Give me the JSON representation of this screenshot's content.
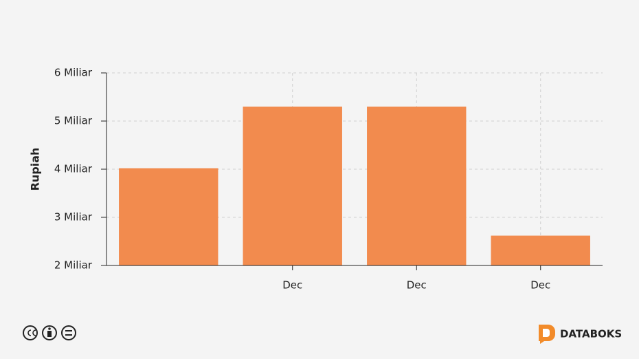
{
  "chart_data": {
    "type": "bar",
    "y_label": "Rupiah",
    "categories": [
      null,
      "Dec",
      "Dec",
      "Dec"
    ],
    "values": [
      4.02,
      5.3,
      5.3,
      2.62
    ],
    "color": "#f28b4e",
    "ylim": [
      2,
      6
    ],
    "yticks": [
      {
        "value": 2,
        "label": "2 Miliar"
      },
      {
        "value": 3,
        "label": "3 Miliar"
      },
      {
        "value": 4,
        "label": "4 Miliar"
      },
      {
        "value": 5,
        "label": "5 Miliar"
      },
      {
        "value": 6,
        "label": "6 Miliar"
      }
    ],
    "grid": true
  },
  "footer": {
    "brand": "DATABOKS"
  }
}
